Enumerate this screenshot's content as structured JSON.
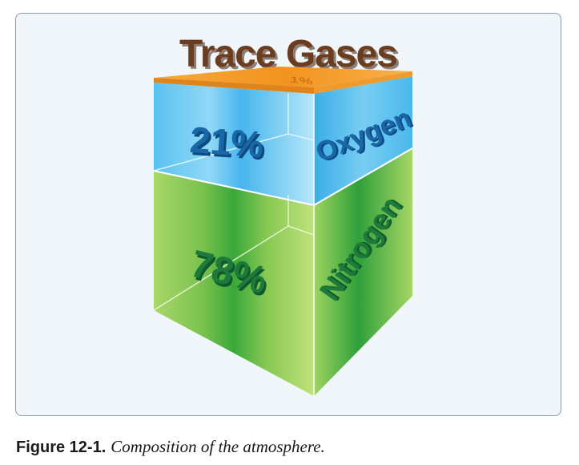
{
  "diagram": {
    "title": "Trace Gases",
    "trace_cap_label": "1%",
    "layers": [
      {
        "gas": "Oxygen",
        "percent_label": "21%",
        "percent": 21,
        "color": "#59c3f0"
      },
      {
        "gas": "Nitrogen",
        "percent_label": "78%",
        "percent": 78,
        "color": "#6fc04a"
      },
      {
        "gas": "Trace Gases",
        "percent_label": "1%",
        "percent": 1,
        "color": "#f39a2a"
      }
    ],
    "colors": {
      "title": "#6b3d1e",
      "oxygen_text": "#1a67a8",
      "nitrogen_text": "#1d7a3a",
      "trace_cap": "#f39a2a",
      "frame_border": "#8a9bb0",
      "frame_background": "#f1f6fb"
    }
  },
  "caption": {
    "label": "Figure 12-1.",
    "text": "Composition of the atmosphere."
  }
}
